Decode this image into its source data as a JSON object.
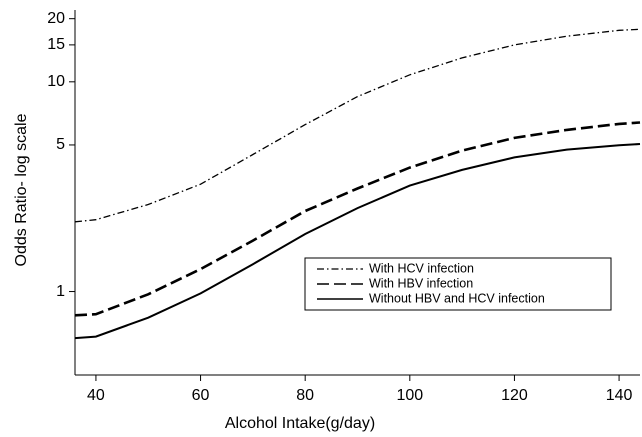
{
  "chart_data": {
    "type": "line",
    "x_label": "Alcohol Intake(g/day)",
    "y_label": "Odds Ratio- log scale",
    "x": [
      36,
      40,
      50,
      60,
      70,
      80,
      90,
      100,
      110,
      120,
      130,
      140,
      144
    ],
    "series": [
      {
        "name": "With HCV infection",
        "color": "#000000",
        "style": "dashdot",
        "values": [
          2.15,
          2.2,
          2.6,
          3.25,
          4.5,
          6.25,
          8.5,
          10.8,
          13,
          15.0,
          16.5,
          17.6,
          17.8
        ]
      },
      {
        "name": "With HBV infection",
        "color": "#000000",
        "style": "dashed",
        "values": [
          0.77,
          0.78,
          0.97,
          1.28,
          1.75,
          2.42,
          3.1,
          3.9,
          4.7,
          5.4,
          5.9,
          6.3,
          6.4
        ]
      },
      {
        "name": "Without HBV and HCV infection",
        "color": "#000000",
        "style": "solid",
        "values": [
          0.6,
          0.61,
          0.75,
          0.98,
          1.35,
          1.88,
          2.5,
          3.2,
          3.8,
          4.36,
          4.75,
          4.98,
          5.05
        ]
      }
    ],
    "xlim": [
      36,
      144
    ],
    "xticks": [
      40,
      60,
      80,
      100,
      120,
      140
    ],
    "ylim": [
      0.4,
      22
    ],
    "yticks": [
      1,
      5,
      10,
      15,
      20
    ],
    "y_log": true,
    "legend": "lower right"
  }
}
